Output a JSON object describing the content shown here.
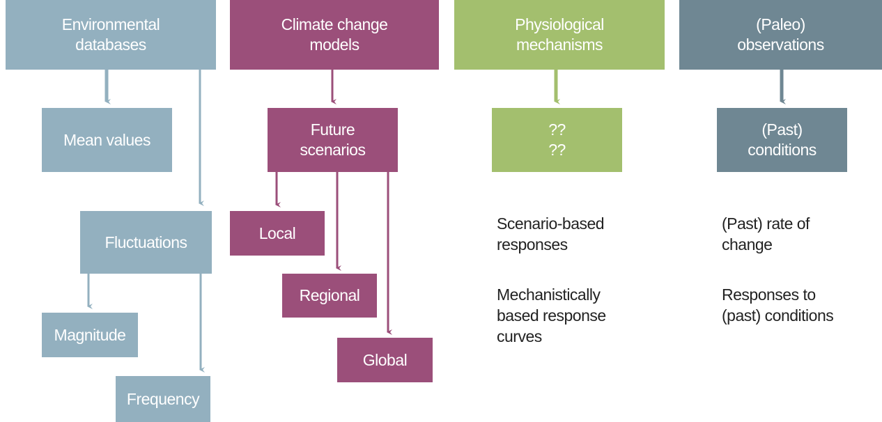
{
  "columns": [
    {
      "header": [
        "Environmental",
        "databases"
      ],
      "nodes": [
        [
          "Mean values"
        ],
        [
          "Fluctuations"
        ],
        [
          "Magnitude"
        ],
        [
          "Frequency"
        ]
      ]
    },
    {
      "header": [
        "Climate change",
        "models"
      ],
      "nodes": [
        [
          "Future",
          "scenarios"
        ],
        [
          "Local"
        ],
        [
          "Regional"
        ],
        [
          "Global"
        ]
      ]
    },
    {
      "header": [
        "Physiological",
        "mechanisms"
      ],
      "nodes": [
        [
          "??",
          "??"
        ]
      ],
      "notes": [
        [
          "Scenario-based",
          "responses"
        ],
        [
          "Mechanistically",
          "based response",
          "curves"
        ]
      ]
    },
    {
      "header": [
        "(Paleo)",
        "observations"
      ],
      "nodes": [
        [
          "(Past)",
          "conditions"
        ]
      ],
      "notes": [
        [
          "(Past) rate of",
          "change"
        ],
        [
          "Responses to",
          "(past) conditions"
        ]
      ]
    }
  ]
}
